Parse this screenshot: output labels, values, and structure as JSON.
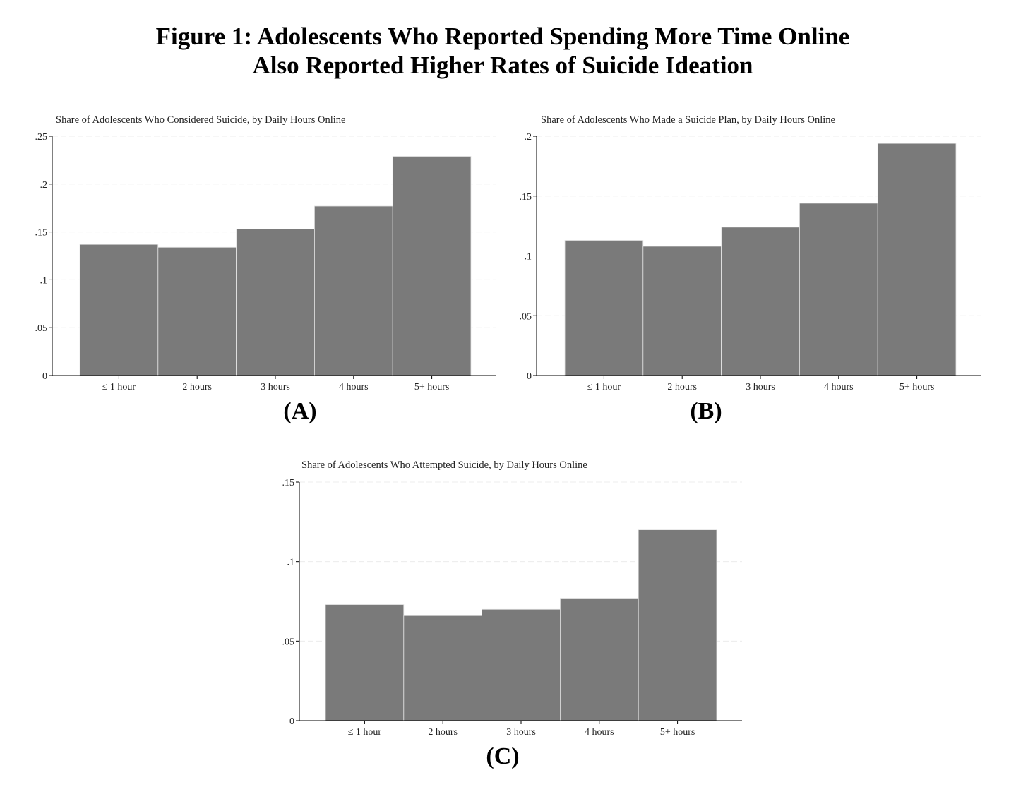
{
  "figure": {
    "title_line1": "Figure 1: Adolescents Who Reported Spending More Time Online",
    "title_line2": "Also Reported Higher Rates of Suicide Ideation"
  },
  "colors": {
    "bar": "#7a7a7a",
    "bar_edge": "#e6e6e6",
    "grid": "#ececec",
    "axis": "#000000"
  },
  "chart_data": [
    {
      "type": "bar",
      "panel_label": "(A)",
      "title": "Share of Adolescents Who Considered Suicide, by Daily Hours Online",
      "categories": [
        "≤ 1 hour",
        "2 hours",
        "3 hours",
        "4 hours",
        "5+ hours"
      ],
      "values": [
        0.137,
        0.134,
        0.153,
        0.177,
        0.229
      ],
      "ylim": [
        0,
        0.25
      ],
      "yticks": [
        0,
        0.05,
        0.1,
        0.15,
        0.2,
        0.25
      ],
      "ytick_labels": [
        "0",
        ".05",
        ".1",
        ".15",
        ".2",
        ".25"
      ],
      "grid": true,
      "xlabel": "",
      "ylabel": ""
    },
    {
      "type": "bar",
      "panel_label": "(B)",
      "title": "Share of Adolescents Who Made a Suicide Plan, by Daily Hours Online",
      "categories": [
        "≤ 1 hour",
        "2 hours",
        "3 hours",
        "4 hours",
        "5+ hours"
      ],
      "values": [
        0.113,
        0.108,
        0.124,
        0.144,
        0.194
      ],
      "ylim": [
        0,
        0.2
      ],
      "yticks": [
        0,
        0.05,
        0.1,
        0.15,
        0.2
      ],
      "ytick_labels": [
        "0",
        ".05",
        ".1",
        ".15",
        ".2"
      ],
      "grid": true,
      "xlabel": "",
      "ylabel": ""
    },
    {
      "type": "bar",
      "panel_label": "(C)",
      "title": "Share of Adolescents Who Attempted Suicide, by Daily Hours Online",
      "categories": [
        "≤ 1 hour",
        "2 hours",
        "3 hours",
        "4 hours",
        "5+ hours"
      ],
      "values": [
        0.073,
        0.066,
        0.07,
        0.077,
        0.12
      ],
      "ylim": [
        0,
        0.15
      ],
      "yticks": [
        0,
        0.05,
        0.1,
        0.15
      ],
      "ytick_labels": [
        "0",
        ".05",
        ".1",
        ".15"
      ],
      "grid": true,
      "xlabel": "",
      "ylabel": ""
    }
  ]
}
